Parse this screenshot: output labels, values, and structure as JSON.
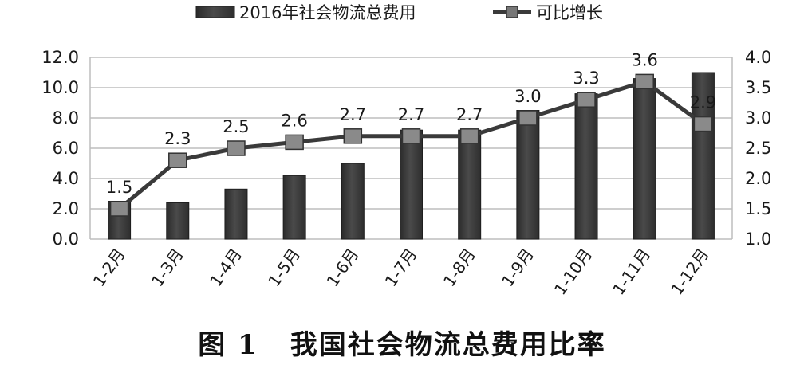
{
  "chart_data": {
    "type": "bar",
    "categories": [
      "1-2月",
      "1-3月",
      "1-4月",
      "1-5月",
      "1-6月",
      "1-7月",
      "1-8月",
      "1-9月",
      "1-10月",
      "1-11月",
      "1-12月"
    ],
    "series": [
      {
        "name": "2016年社会物流总费用",
        "type": "bar",
        "axis": "left",
        "values": [
          2.5,
          2.4,
          3.3,
          4.2,
          5.0,
          7.2,
          7.2,
          8.5,
          9.6,
          10.6,
          11.0
        ]
      },
      {
        "name": "可比增长",
        "type": "line",
        "axis": "right",
        "values": [
          1.5,
          2.3,
          2.5,
          2.6,
          2.7,
          2.7,
          2.7,
          3.0,
          3.3,
          3.6,
          2.9
        ],
        "labels": [
          "1.5",
          "2.3",
          "2.5",
          "2.6",
          "2.7",
          "2.7",
          "2.7",
          "3.0",
          "3.3",
          "3.6",
          "2.9"
        ]
      }
    ],
    "y_left": {
      "min": 0,
      "max": 12,
      "step": 2,
      "tick_labels": [
        "0.0",
        "2.0",
        "4.0",
        "6.0",
        "8.0",
        "10.0",
        "12.0"
      ]
    },
    "y_right": {
      "min": 1.0,
      "max": 4.0,
      "step": 0.5,
      "tick_labels": [
        "1.0",
        "1.5",
        "2.0",
        "2.5",
        "3.0",
        "3.5",
        "4.0"
      ]
    },
    "grid": true,
    "legend": "top",
    "bar_color": "#3c3c3c",
    "line_color": "#3a3a3a",
    "caption_number": "图 1",
    "caption_text": "我国社会物流总费用比率"
  }
}
